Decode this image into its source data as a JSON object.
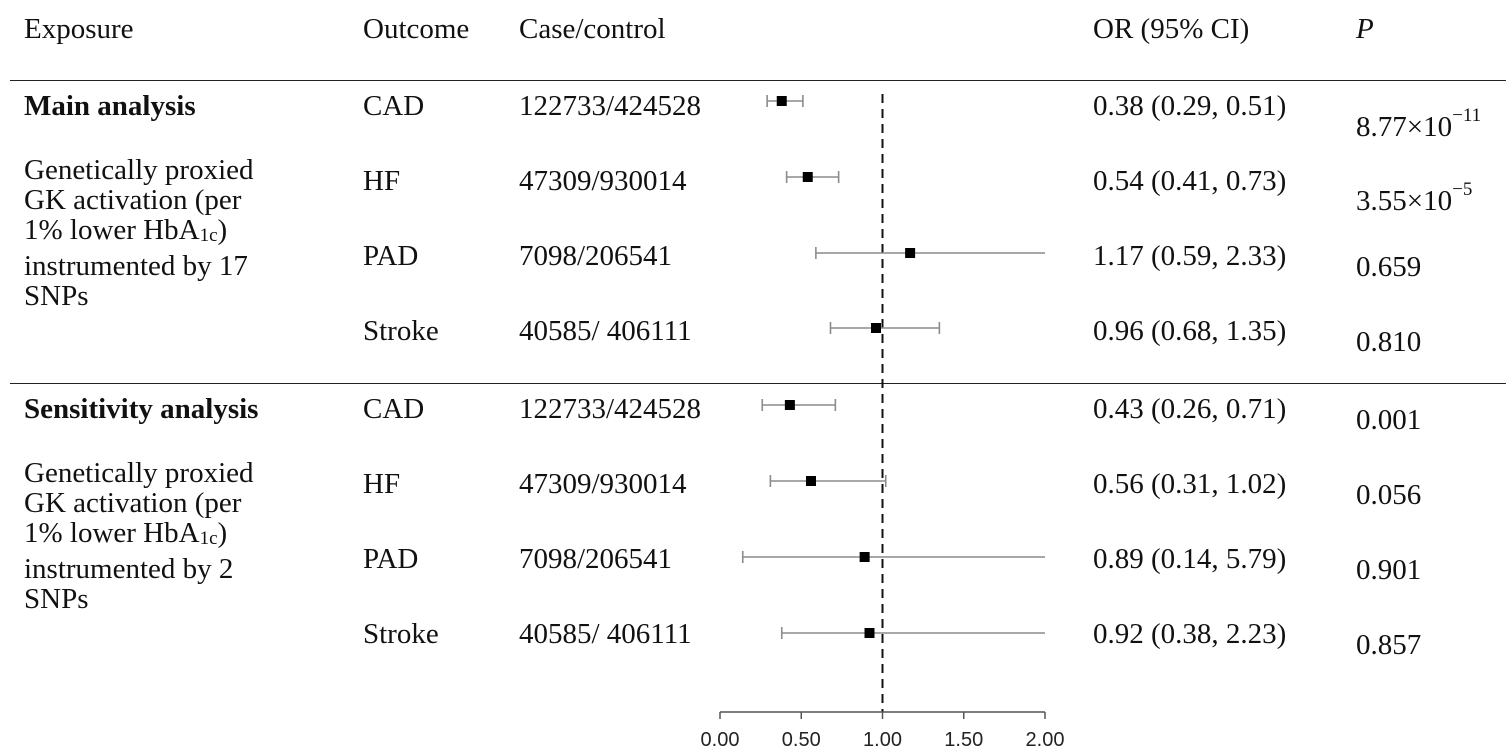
{
  "headers": {
    "exposure": "Exposure",
    "outcome": "Outcome",
    "case_control": "Case/control",
    "or_ci": "OR (95% CI)",
    "p": "P"
  },
  "groups": [
    {
      "title": "Main analysis",
      "desc_lines": [
        "Genetically proxied",
        "GK activation (per",
        "1% lower HbA",
        "instrumented by 17",
        "SNPs"
      ],
      "desc_sub": "1c",
      "desc_after_sub": ")",
      "rows": [
        {
          "outcome": "CAD",
          "case_control": "122733/424528",
          "or_text": "0.38 (0.29, 0.51)",
          "p_base": "8.77×10",
          "p_exp": "−11"
        },
        {
          "outcome": "HF",
          "case_control": "47309/930014",
          "or_text": "0.54 (0.41, 0.73)",
          "p_base": "3.55×10",
          "p_exp": "−5"
        },
        {
          "outcome": "PAD",
          "case_control": "7098/206541",
          "or_text": "1.17 (0.59, 2.33)",
          "p_base": "0.659",
          "p_exp": ""
        },
        {
          "outcome": "Stroke",
          "case_control": "40585/ 406111",
          "or_text": "0.96 (0.68, 1.35)",
          "p_base": "0.810",
          "p_exp": ""
        }
      ]
    },
    {
      "title": "Sensitivity analysis",
      "desc_lines": [
        "Genetically proxied",
        "GK activation (per",
        "1% lower HbA",
        "instrumented by 2",
        "SNPs"
      ],
      "desc_sub": "1c",
      "desc_after_sub": ")",
      "rows": [
        {
          "outcome": "CAD",
          "case_control": "122733/424528",
          "or_text": "0.43 (0.26, 0.71)",
          "p_base": "0.001",
          "p_exp": ""
        },
        {
          "outcome": "HF",
          "case_control": "47309/930014",
          "or_text": "0.56 (0.31, 1.02)",
          "p_base": "0.056",
          "p_exp": ""
        },
        {
          "outcome": "PAD",
          "case_control": "7098/206541",
          "or_text": "0.89 (0.14, 5.79)",
          "p_base": "0.901",
          "p_exp": ""
        },
        {
          "outcome": "Stroke",
          "case_control": "40585/ 406111",
          "or_text": "0.92 (0.38, 2.23)",
          "p_base": "0.857",
          "p_exp": ""
        }
      ]
    }
  ],
  "chart_data": {
    "type": "forest",
    "x_ticks": [
      "0.00",
      "0.50",
      "1.00",
      "1.50",
      "2.00"
    ],
    "xlim": [
      0,
      2
    ],
    "reference_line": 1.0,
    "points": [
      {
        "or": 0.38,
        "lo": 0.29,
        "hi": 0.51
      },
      {
        "or": 0.54,
        "lo": 0.41,
        "hi": 0.73
      },
      {
        "or": 1.17,
        "lo": 0.59,
        "hi": 2.33
      },
      {
        "or": 0.96,
        "lo": 0.68,
        "hi": 1.35
      },
      {
        "or": 0.43,
        "lo": 0.26,
        "hi": 0.71
      },
      {
        "or": 0.56,
        "lo": 0.31,
        "hi": 1.02
      },
      {
        "or": 0.89,
        "lo": 0.14,
        "hi": 5.79
      },
      {
        "or": 0.92,
        "lo": 0.38,
        "hi": 2.23
      }
    ]
  }
}
